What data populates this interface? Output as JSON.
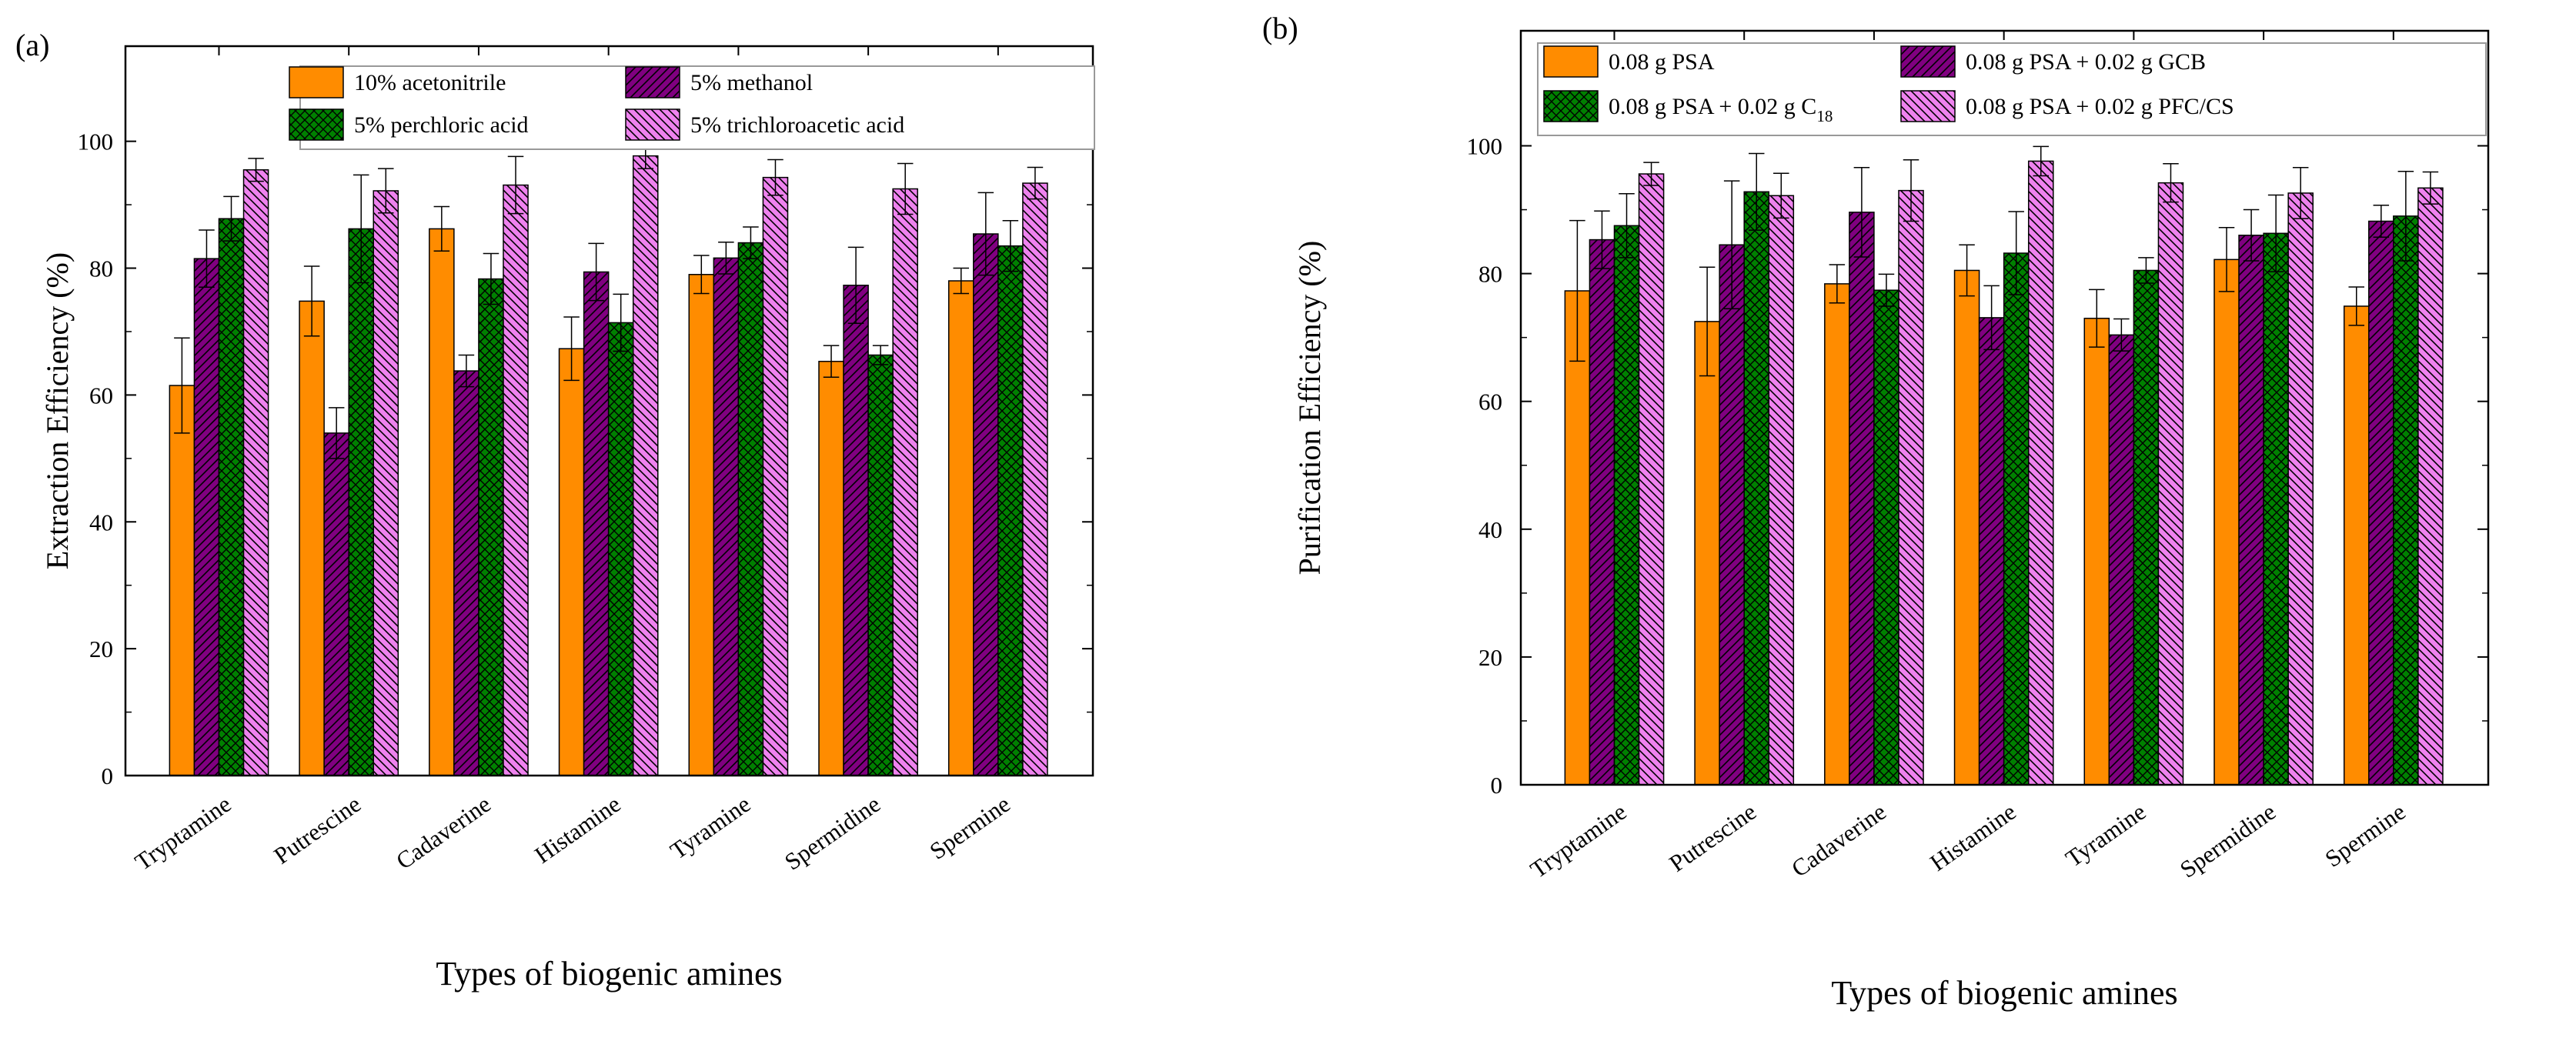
{
  "chart_data": [
    {
      "panel_label": "(a)",
      "type": "bar",
      "title": "",
      "xlabel": "Types of biogenic amines",
      "ylabel": "Extraction Efficiency (%)",
      "ylim": [
        0,
        115
      ],
      "yticks": [
        0,
        20,
        40,
        60,
        80,
        100
      ],
      "grid": false,
      "legend_position": "top",
      "categories": [
        "Tryptamine",
        "Putrescine",
        "Cadaverine",
        "Histamine",
        "Tyramine",
        "Spermidine",
        "Spermine"
      ],
      "series": [
        {
          "name": "10% acetonitrile",
          "color": "#FF8C00",
          "pattern": "none",
          "values": [
            61.5,
            74.8,
            86.2,
            67.3,
            79.0,
            65.3,
            78.0
          ],
          "errors": [
            7.5,
            5.5,
            3.5,
            5.0,
            3.0,
            2.5,
            2.0
          ]
        },
        {
          "name": "5% methanol",
          "color": "#800080",
          "pattern": "diag-right",
          "values": [
            81.5,
            54.0,
            63.8,
            79.4,
            81.6,
            77.3,
            85.4
          ],
          "errors": [
            4.5,
            4.0,
            2.5,
            4.5,
            2.5,
            6.0,
            6.5
          ]
        },
        {
          "name": "5% perchloric acid",
          "color": "#008000",
          "pattern": "cross",
          "values": [
            87.8,
            86.2,
            78.3,
            71.4,
            84.0,
            66.3,
            83.5
          ],
          "errors": [
            3.5,
            8.5,
            4.0,
            4.5,
            2.5,
            1.5,
            4.0
          ]
        },
        {
          "name": "5% trichloroacetic acid",
          "color": "#EE82EE",
          "pattern": "diag-left",
          "values": [
            95.5,
            92.2,
            93.1,
            97.7,
            94.3,
            92.5,
            93.4
          ],
          "errors": [
            1.8,
            3.5,
            4.5,
            2.0,
            2.8,
            4.0,
            2.5
          ]
        }
      ]
    },
    {
      "panel_label": "(b)",
      "type": "bar",
      "title": "",
      "xlabel": "Types of biogenic amines",
      "ylabel": "Purification  Efficiency (%)",
      "ylim": [
        0,
        118
      ],
      "yticks": [
        0,
        20,
        40,
        60,
        80,
        100
      ],
      "grid": false,
      "legend_position": "top",
      "categories": [
        "Tryptamine",
        "Putrescine",
        "Cadaverine",
        "Histamine",
        "Tyramine",
        "Spermidine",
        "Spermine"
      ],
      "series": [
        {
          "name": "0.08 g PSA",
          "color": "#FF8C00",
          "pattern": "none",
          "values": [
            77.3,
            72.5,
            78.4,
            80.5,
            73.0,
            82.2,
            74.9
          ],
          "errors": [
            11.0,
            8.5,
            3.0,
            4.0,
            4.5,
            5.0,
            3.0
          ]
        },
        {
          "name": "0.08 g PSA + 0.02 g GCB",
          "color": "#800080",
          "pattern": "diag-right",
          "values": [
            85.3,
            84.5,
            89.6,
            73.1,
            70.4,
            86.0,
            88.2
          ],
          "errors": [
            4.5,
            10.0,
            7.0,
            5.0,
            2.5,
            4.0,
            2.5
          ]
        },
        {
          "name": "0.08 g PSA + 0.02 g C",
          "name_sub": "18",
          "color": "#008000",
          "pattern": "cross",
          "values": [
            87.5,
            92.8,
            77.4,
            83.2,
            80.5,
            86.3,
            89.0
          ],
          "errors": [
            5.0,
            6.0,
            2.5,
            6.5,
            2.0,
            6.0,
            7.0
          ]
        },
        {
          "name": "0.08 g PSA + 0.02 g PFC/CS",
          "color": "#EE82EE",
          "pattern": "diag-left",
          "values": [
            95.6,
            92.2,
            93.0,
            97.6,
            94.2,
            92.6,
            93.4
          ],
          "errors": [
            1.8,
            3.5,
            4.8,
            2.3,
            3.0,
            4.0,
            2.5
          ]
        }
      ]
    }
  ]
}
